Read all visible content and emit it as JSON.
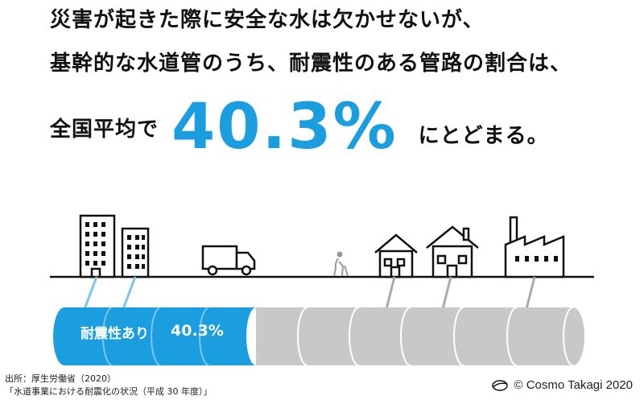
{
  "headline": {
    "line1": "災害が起きた際に安全な水は欠かせないが、",
    "line2": "基幹的な水道管のうち、耐震性のある管路の割合は、",
    "line3_prefix": "全国平均で",
    "highlight_value": "40.3%",
    "line3_suffix": "にとどまる。"
  },
  "pipe": {
    "label": "耐震性あり",
    "value_label": "40.3%",
    "earthquake_resistant_share": 0.403
  },
  "source": {
    "line1": "出所：厚生労働省（2020）",
    "line2": "「水道事業における耐震化の状況（平成 30 年度）」"
  },
  "credit": "© Cosmo Takagi 2020",
  "colors": {
    "accent": "#1a9ee0",
    "pipe_gray": "#c8c8c8",
    "text": "#111111"
  },
  "icons": [
    "apartment-building-icon",
    "office-building-icon",
    "truck-icon",
    "elderly-person-icon",
    "house-icon",
    "house-icon",
    "factory-icon",
    "logo-icon"
  ]
}
